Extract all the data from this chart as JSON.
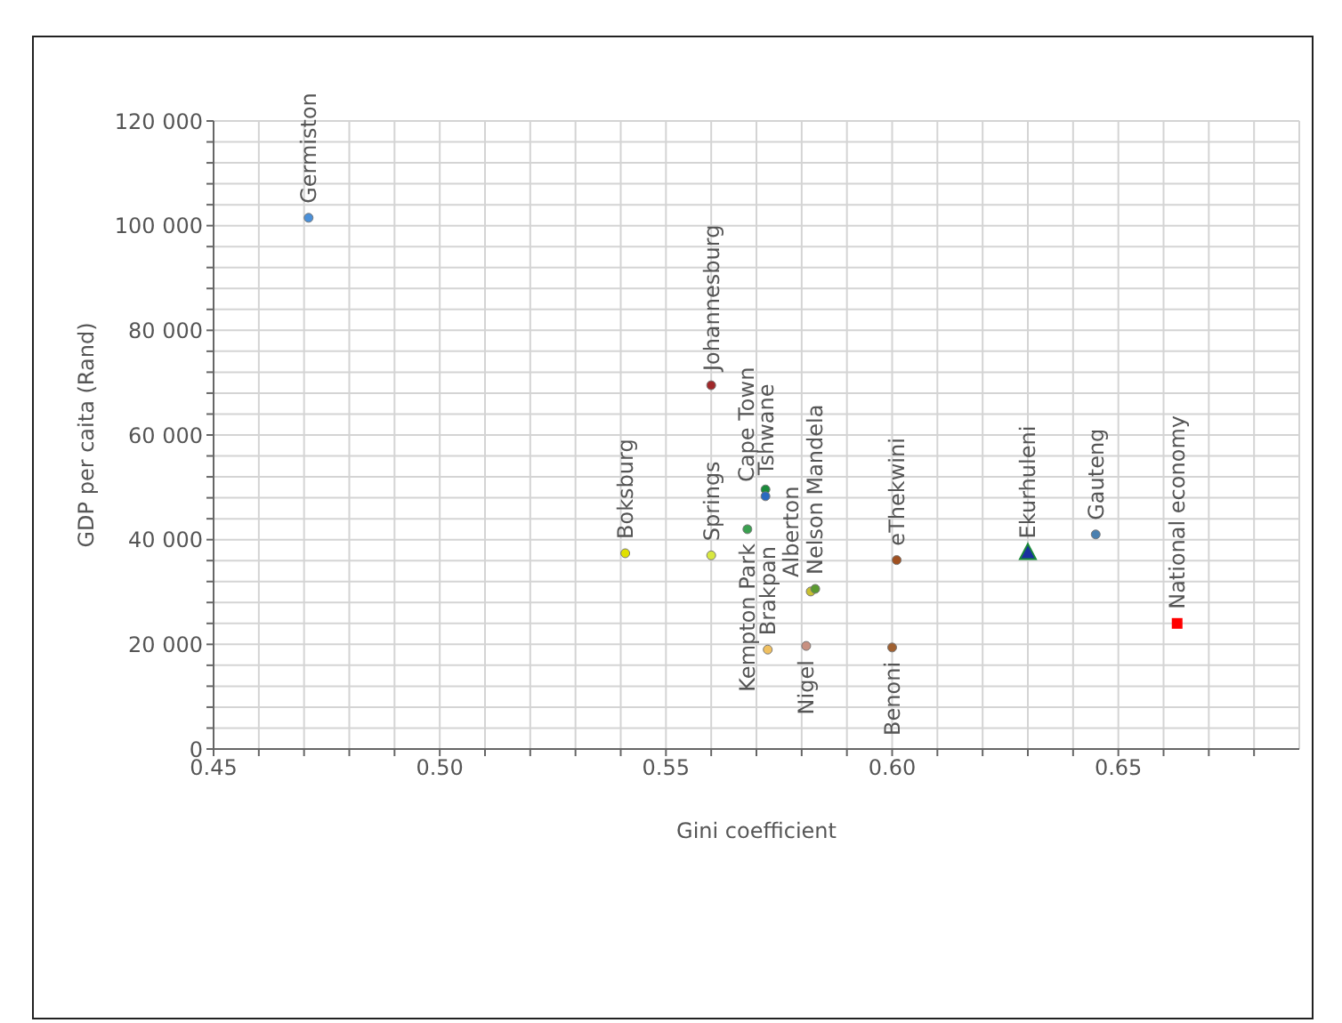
{
  "chart_data": {
    "type": "scatter",
    "xlabel": "Gini coefficient",
    "ylabel": "GDP per caita (Rand)",
    "xlim": [
      0.45,
      0.69
    ],
    "ylim": [
      0,
      120000
    ],
    "xticks": [
      {
        "value": 0.45,
        "label": "0.45"
      },
      {
        "value": 0.46,
        "label": null
      },
      {
        "value": 0.47,
        "label": null
      },
      {
        "value": 0.48,
        "label": null
      },
      {
        "value": 0.49,
        "label": null
      },
      {
        "value": 0.5,
        "label": "0.50"
      },
      {
        "value": 0.51,
        "label": null
      },
      {
        "value": 0.52,
        "label": null
      },
      {
        "value": 0.53,
        "label": null
      },
      {
        "value": 0.54,
        "label": null
      },
      {
        "value": 0.55,
        "label": "0.55"
      },
      {
        "value": 0.56,
        "label": null
      },
      {
        "value": 0.57,
        "label": null
      },
      {
        "value": 0.58,
        "label": null
      },
      {
        "value": 0.59,
        "label": null
      },
      {
        "value": 0.6,
        "label": "0.60"
      },
      {
        "value": 0.61,
        "label": null
      },
      {
        "value": 0.62,
        "label": null
      },
      {
        "value": 0.63,
        "label": null
      },
      {
        "value": 0.64,
        "label": null
      },
      {
        "value": 0.65,
        "label": "0.65"
      },
      {
        "value": 0.66,
        "label": null
      },
      {
        "value": 0.67,
        "label": null
      },
      {
        "value": 0.68,
        "label": null
      }
    ],
    "yticks": [
      0,
      {
        "value": 4000,
        "label": null
      },
      {
        "value": 8000,
        "label": null
      },
      {
        "value": 12000,
        "label": null
      },
      {
        "value": 16000,
        "label": null
      },
      {
        "value": 20000,
        "label": "20 000"
      },
      {
        "value": 24000,
        "label": null
      },
      {
        "value": 28000,
        "label": null
      },
      {
        "value": 32000,
        "label": null
      },
      {
        "value": 36000,
        "label": null
      },
      {
        "value": 40000,
        "label": "40 000"
      },
      {
        "value": 44000,
        "label": null
      },
      {
        "value": 48000,
        "label": null
      },
      {
        "value": 52000,
        "label": null
      },
      {
        "value": 56000,
        "label": null
      },
      {
        "value": 60000,
        "label": "60 000"
      },
      {
        "value": 64000,
        "label": null
      },
      {
        "value": 68000,
        "label": null
      },
      {
        "value": 72000,
        "label": null
      },
      {
        "value": 76000,
        "label": null
      },
      {
        "value": 80000,
        "label": "80 000"
      },
      {
        "value": 84000,
        "label": null
      },
      {
        "value": 88000,
        "label": null
      },
      {
        "value": 92000,
        "label": null
      },
      {
        "value": 96000,
        "label": null
      },
      {
        "value": 100000,
        "label": "100 000"
      },
      {
        "value": 104000,
        "label": null
      },
      {
        "value": 108000,
        "label": null
      },
      {
        "value": 112000,
        "label": null
      },
      {
        "value": 116000,
        "label": null
      },
      {
        "value": 120000,
        "label": "120 000"
      }
    ],
    "grid": true,
    "marker": "circle",
    "series": [
      {
        "name": "Germiston",
        "color": "#4a90d9",
        "x": [
          0.471
        ],
        "values": [
          101500
        ]
      },
      {
        "name": "Boksburg",
        "color": "#e0e000",
        "x": [
          0.541
        ],
        "values": [
          37400
        ]
      },
      {
        "name": "Springs",
        "color": "#d8e840",
        "x": [
          0.56
        ],
        "values": [
          37000
        ]
      },
      {
        "name": "Johannesburg",
        "color": "#a0282a",
        "x": [
          0.56
        ],
        "values": [
          69500
        ]
      },
      {
        "name": "Kempton Park",
        "color": "#3aa050",
        "x": [
          0.568
        ],
        "values": [
          42000
        ]
      },
      {
        "name": "Tshwane",
        "color": "#1a8a3a",
        "x": [
          0.572
        ],
        "values": [
          49600
        ]
      },
      {
        "name": "Cape Town",
        "color": "#2a6ac0",
        "x": [
          0.572
        ],
        "values": [
          48300
        ]
      },
      {
        "name": "Brakpan",
        "color": "#f0c060",
        "x": [
          0.5725
        ],
        "values": [
          19000
        ]
      },
      {
        "name": "Nigel",
        "color": "#c89080",
        "x": [
          0.581
        ],
        "values": [
          19700
        ]
      },
      {
        "name": "Alberton",
        "color": "#c8c030",
        "x": [
          0.582
        ],
        "values": [
          30100
        ]
      },
      {
        "name": "Nelson Mandela",
        "color": "#5a9a30",
        "x": [
          0.583
        ],
        "values": [
          30600
        ]
      },
      {
        "name": "Benoni",
        "color": "#a06030",
        "x": [
          0.6
        ],
        "values": [
          19400
        ]
      },
      {
        "name": "eThekwini",
        "color": "#a05020",
        "x": [
          0.601
        ],
        "values": [
          36100
        ]
      },
      {
        "name": "Ekurhuleni",
        "color": "#1a30a0",
        "x": [
          0.63
        ],
        "values": [
          37500
        ],
        "marker": "triangle"
      },
      {
        "name": "Gauteng",
        "color": "#4a80b0",
        "x": [
          0.645
        ],
        "values": [
          41000
        ]
      },
      {
        "name": "National economy",
        "color": "#ff0000",
        "x": [
          0.663
        ],
        "values": [
          24000
        ],
        "marker": "square"
      }
    ]
  }
}
